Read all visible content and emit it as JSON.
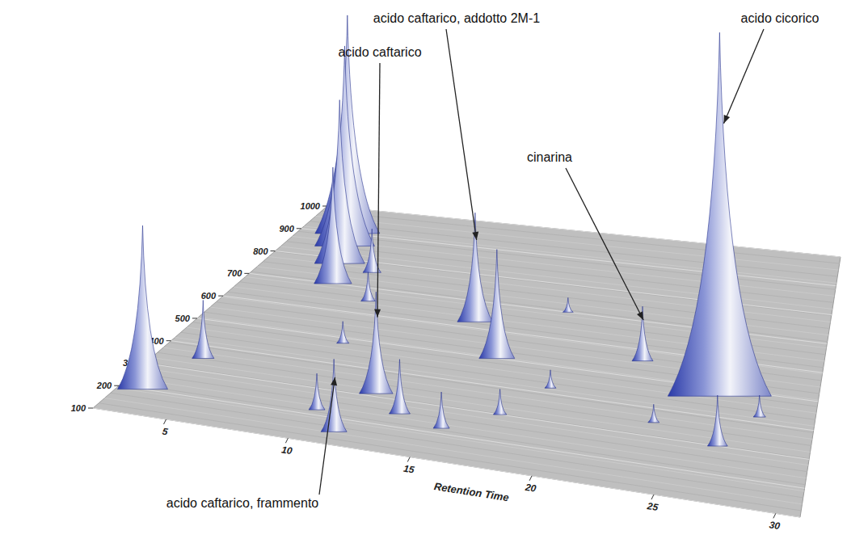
{
  "chart_data": {
    "type": "surface3d",
    "x_label": "Retention Time",
    "xlim": [
      2,
      31
    ],
    "xticks": [
      5,
      10,
      15,
      20,
      25,
      30
    ],
    "ylim": [
      100,
      1000
    ],
    "yticks": [
      100,
      200,
      300,
      400,
      500,
      600,
      700,
      800,
      900,
      1000
    ],
    "zlim": [
      0,
      100
    ],
    "grid": true,
    "color": "#2a3aa8",
    "peaks": {
      "x": [
        3.0,
        4.5,
        5.0,
        5.6,
        6.2,
        4.0,
        7.5,
        8.5,
        10.2,
        11.5,
        12.0,
        14.0,
        16.0,
        13.5,
        15.5,
        17.5,
        19.0,
        22.5,
        26.5,
        27.0,
        24.0,
        28.5,
        9.0,
        18.0
      ],
      "y": [
        200,
        900,
        850,
        780,
        700,
        350,
        760,
        650,
        220,
        149,
        311,
        623,
        500,
        250,
        220,
        300,
        420,
        560,
        473,
        300,
        350,
        420,
        480,
        700
      ],
      "z": [
        45,
        60,
        55,
        45,
        32,
        16,
        12,
        8,
        10,
        20,
        28,
        30,
        30,
        15,
        10,
        7,
        5,
        15,
        100,
        14,
        5,
        6,
        6,
        4
      ]
    },
    "annotations": [
      {
        "text": "acido caftarico",
        "x": 12.0,
        "y": 311
      },
      {
        "text": "acido caftarico, addotto 2M-1",
        "x": 14.0,
        "y": 623
      },
      {
        "text": "acido caftarico, frammento",
        "x": 11.5,
        "y": 149
      },
      {
        "text": "cinarina",
        "x": 22.5,
        "y": 560
      },
      {
        "text": "acido cicorico",
        "x": 26.5,
        "y": 473
      }
    ]
  }
}
